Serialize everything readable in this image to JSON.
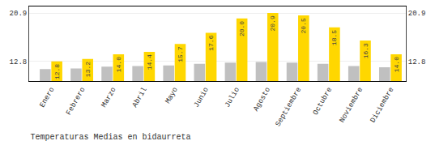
{
  "chart_data": {
    "type": "bar",
    "title": "Temperaturas Medias en bidaurreta",
    "categories": [
      "Enero",
      "Febrero",
      "Marzo",
      "Abril",
      "Mayo",
      "Junio",
      "Julio",
      "Agosto",
      "Septiembre",
      "Octubre",
      "Noviembre",
      "Diciembre"
    ],
    "series": [
      {
        "color": "#C0C0C0",
        "values": [
          11.5,
          11.6,
          11.9,
          12.0,
          12.1,
          12.4,
          12.6,
          12.7,
          12.6,
          12.4,
          12.0,
          11.8
        ]
      },
      {
        "color": "#FFD700",
        "values": [
          12.8,
          13.2,
          14.0,
          14.4,
          15.7,
          17.6,
          20.0,
          20.9,
          20.5,
          18.5,
          16.3,
          14.0
        ],
        "value_labels": [
          "12.8",
          "13.2",
          "14.0",
          "14.4",
          "15.7",
          "17.6",
          "20.0",
          "20.9",
          "20.5",
          "18.5",
          "16.3",
          "14.0"
        ],
        "data_labels": true
      }
    ],
    "ylim": [
      9.5,
      22.0
    ],
    "yticks": [
      12.8,
      20.9
    ],
    "y2lim": [
      9.5,
      22.0
    ],
    "y2ticks": [
      12.8,
      20.9
    ],
    "grid": true
  }
}
